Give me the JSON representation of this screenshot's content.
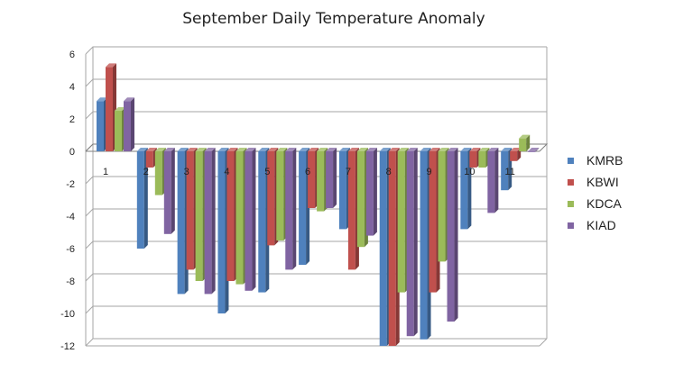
{
  "chart_data": {
    "type": "bar",
    "title": "September Daily Temperature Anomaly",
    "categories": [
      "1",
      "2",
      "3",
      "4",
      "5",
      "6",
      "7",
      "8",
      "9",
      "10",
      "11"
    ],
    "ylim": [
      -12,
      6
    ],
    "yticks": [
      6,
      4,
      2,
      0,
      -2,
      -4,
      -6,
      -8,
      -10,
      -12
    ],
    "grid": true,
    "legend": "right",
    "series": [
      {
        "name": "KMRB",
        "color": "#4f81bd",
        "values": [
          3.1,
          -6.0,
          -8.8,
          -10.0,
          -8.7,
          -7.0,
          -4.8,
          -12.0,
          -11.6,
          -4.8,
          -2.4
        ]
      },
      {
        "name": "KBWI",
        "color": "#c0504d",
        "values": [
          5.2,
          -1.0,
          -7.3,
          -8.0,
          -5.8,
          -3.5,
          -7.3,
          -12.0,
          -8.7,
          -1.0,
          -0.6
        ]
      },
      {
        "name": "KDCA",
        "color": "#9bbb59",
        "values": [
          2.5,
          -2.7,
          -8.0,
          -8.2,
          -5.5,
          -3.7,
          -5.9,
          -8.7,
          -6.8,
          -1.0,
          0.8
        ]
      },
      {
        "name": "KIAD",
        "color": "#8064a2",
        "values": [
          3.1,
          -5.1,
          -8.8,
          -8.6,
          -7.3,
          -3.5,
          -5.2,
          -11.4,
          -10.5,
          -3.8,
          0.0
        ]
      }
    ]
  }
}
